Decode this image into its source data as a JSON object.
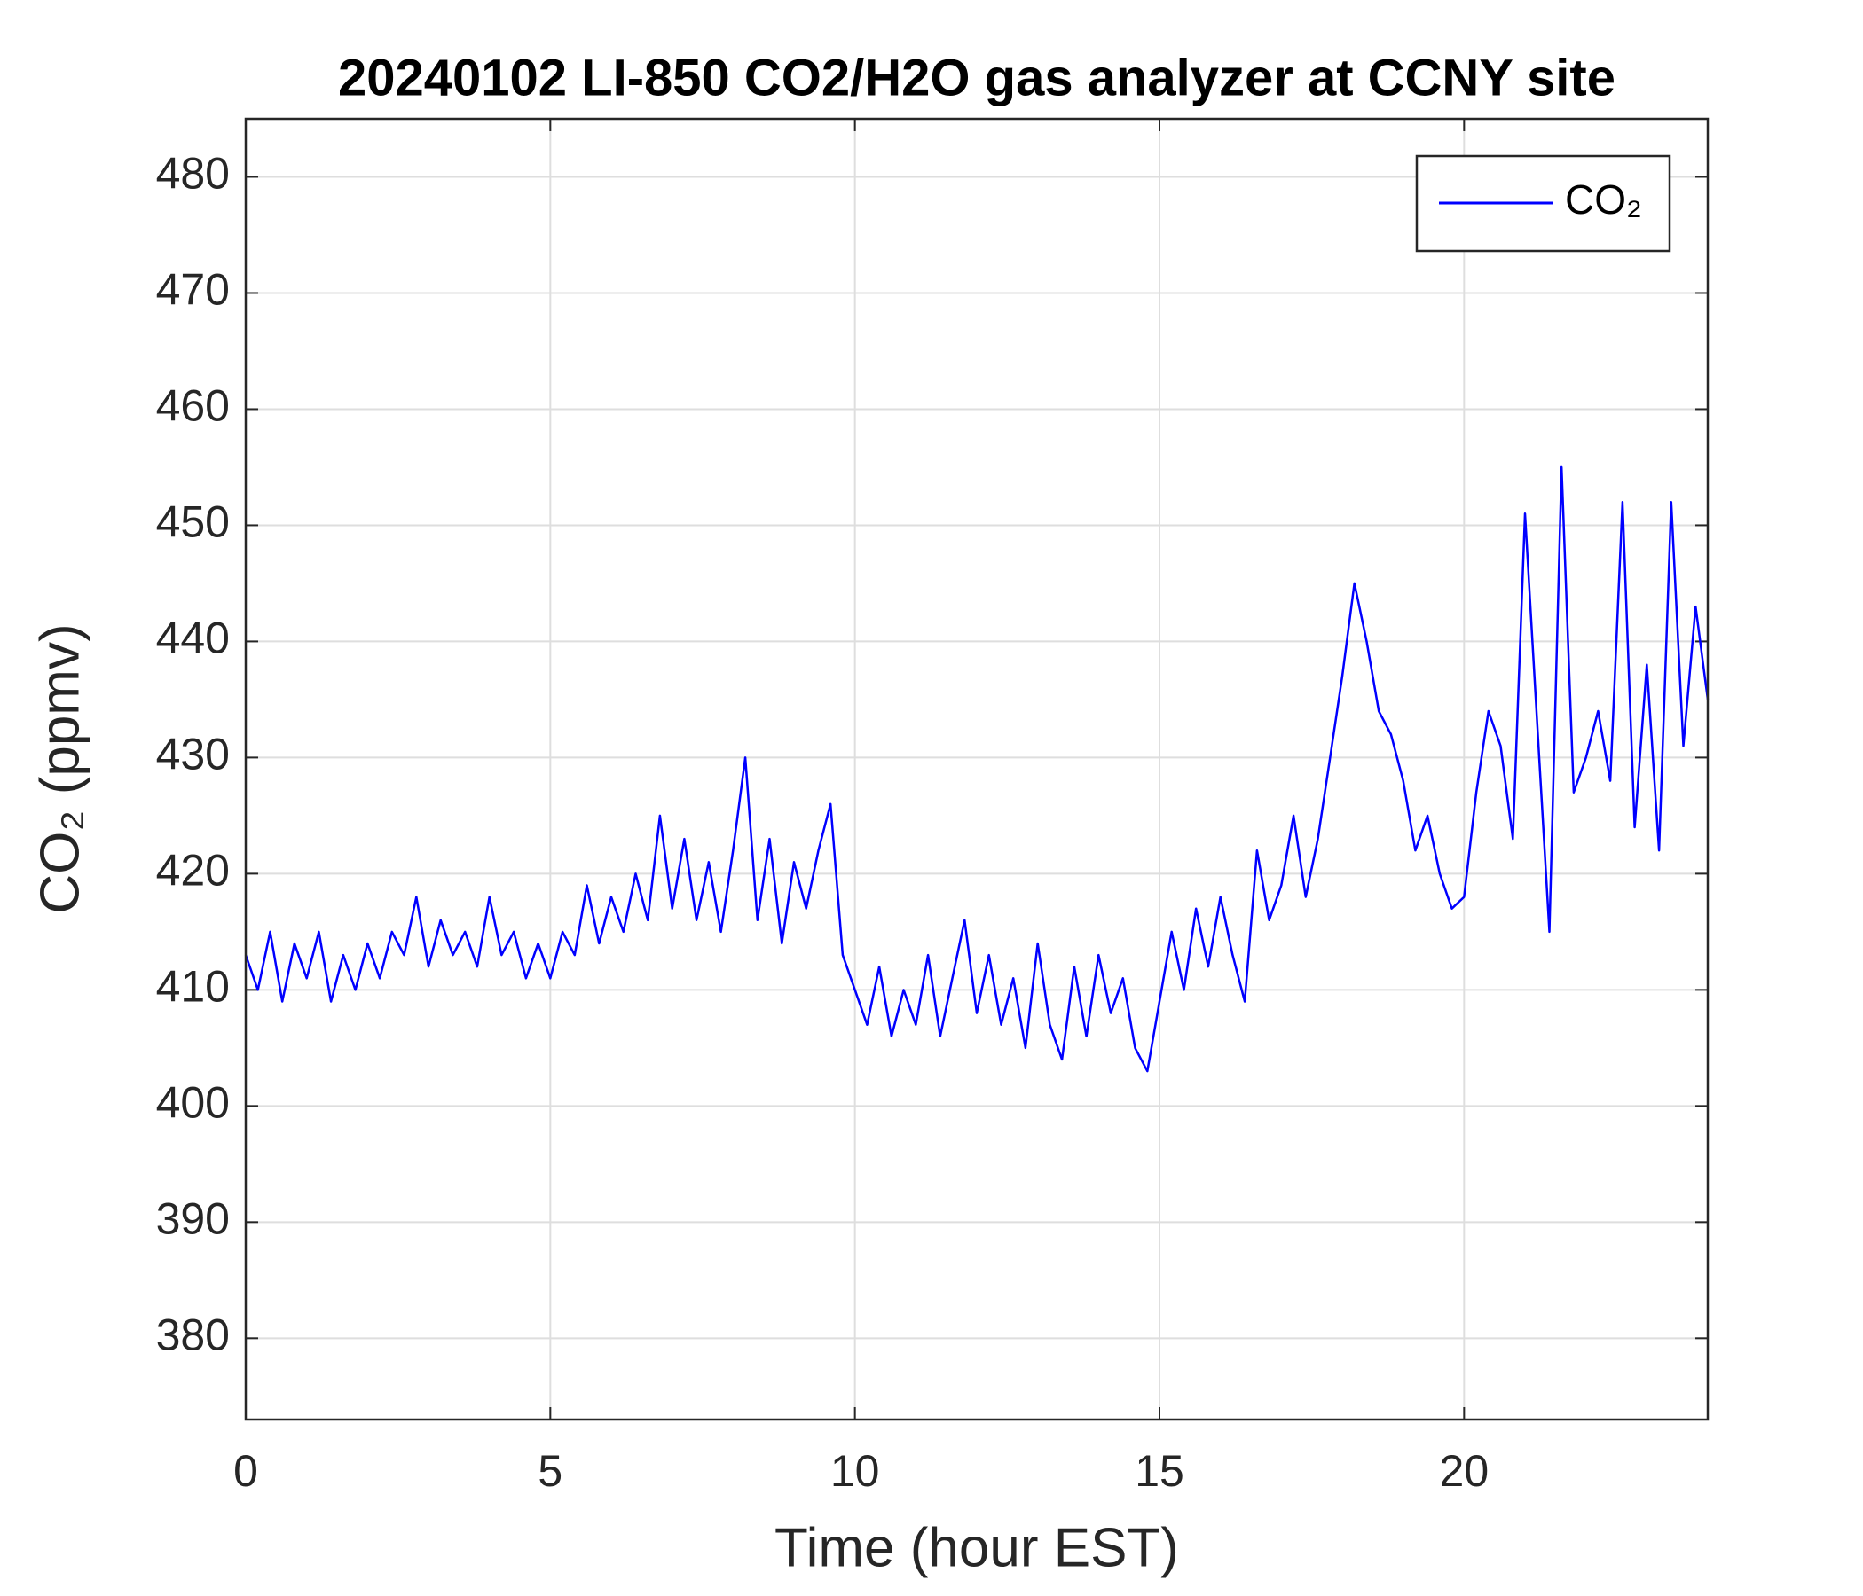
{
  "chart_data": {
    "type": "line",
    "title": "20240102 LI-850 CO2/H2O gas analyzer at CCNY site",
    "x_label": "Time (hour EST)",
    "y_label": "CO₂ (ppmv)",
    "xlim": [
      0,
      24
    ],
    "xticks": [
      0,
      5,
      10,
      15,
      20
    ],
    "ylim": [
      373,
      485
    ],
    "yticks": [
      380,
      390,
      400,
      410,
      420,
      430,
      440,
      450,
      460,
      470,
      480
    ],
    "grid": true,
    "legend": "upper right",
    "x": [
      0,
      0.2,
      0.4,
      0.6,
      0.8,
      1,
      1.2,
      1.4,
      1.6,
      1.8,
      2,
      2.2,
      2.4,
      2.6,
      2.8,
      3,
      3.2,
      3.4,
      3.6,
      3.8,
      4,
      4.2,
      4.4,
      4.6,
      4.8,
      5,
      5.2,
      5.4,
      5.6,
      5.8,
      6,
      6.2,
      6.4,
      6.6,
      6.8,
      7,
      7.2,
      7.4,
      7.6,
      7.8,
      8,
      8.2,
      8.4,
      8.6,
      8.8,
      9,
      9.2,
      9.4,
      9.6,
      9.8,
      10,
      10.2,
      10.4,
      10.6,
      10.8,
      11,
      11.2,
      11.4,
      11.6,
      11.8,
      12,
      12.2,
      12.4,
      12.6,
      12.8,
      13,
      13.2,
      13.4,
      13.6,
      13.8,
      14,
      14.2,
      14.4,
      14.6,
      14.8,
      15,
      15.2,
      15.4,
      15.6,
      15.8,
      16,
      16.2,
      16.4,
      16.6,
      16.8,
      17,
      17.2,
      17.4,
      17.6,
      17.8,
      18,
      18.2,
      18.4,
      18.6,
      18.8,
      19,
      19.2,
      19.4,
      19.6,
      19.8,
      20,
      20.2,
      20.4,
      20.6,
      20.8,
      21,
      21.2,
      21.4,
      21.6,
      21.8,
      22,
      22.2,
      22.4,
      22.6,
      22.8,
      23,
      23.2,
      23.4,
      23.6,
      23.8,
      24
    ],
    "series": [
      {
        "name": "CO₂",
        "color": "#0000ff",
        "values": [
          413,
          410,
          415,
          409,
          414,
          411,
          415,
          409,
          413,
          410,
          414,
          411,
          415,
          413,
          418,
          412,
          416,
          413,
          415,
          412,
          418,
          413,
          415,
          411,
          414,
          411,
          415,
          413,
          419,
          414,
          418,
          415,
          420,
          416,
          425,
          417,
          423,
          416,
          421,
          415,
          422,
          430,
          416,
          423,
          414,
          421,
          417,
          422,
          426,
          413,
          410,
          407,
          412,
          406,
          410,
          407,
          413,
          406,
          411,
          416,
          408,
          413,
          407,
          411,
          405,
          414,
          407,
          404,
          412,
          406,
          413,
          408,
          411,
          405,
          403,
          409,
          415,
          410,
          417,
          412,
          418,
          413,
          409,
          422,
          416,
          419,
          425,
          418,
          423,
          430,
          437,
          445,
          440,
          434,
          432,
          428,
          422,
          425,
          420,
          417,
          418,
          427,
          434,
          431,
          423,
          451,
          433,
          415,
          455,
          427,
          430,
          434,
          428,
          452,
          424,
          438,
          422,
          452,
          431,
          443,
          435
        ]
      }
    ]
  }
}
